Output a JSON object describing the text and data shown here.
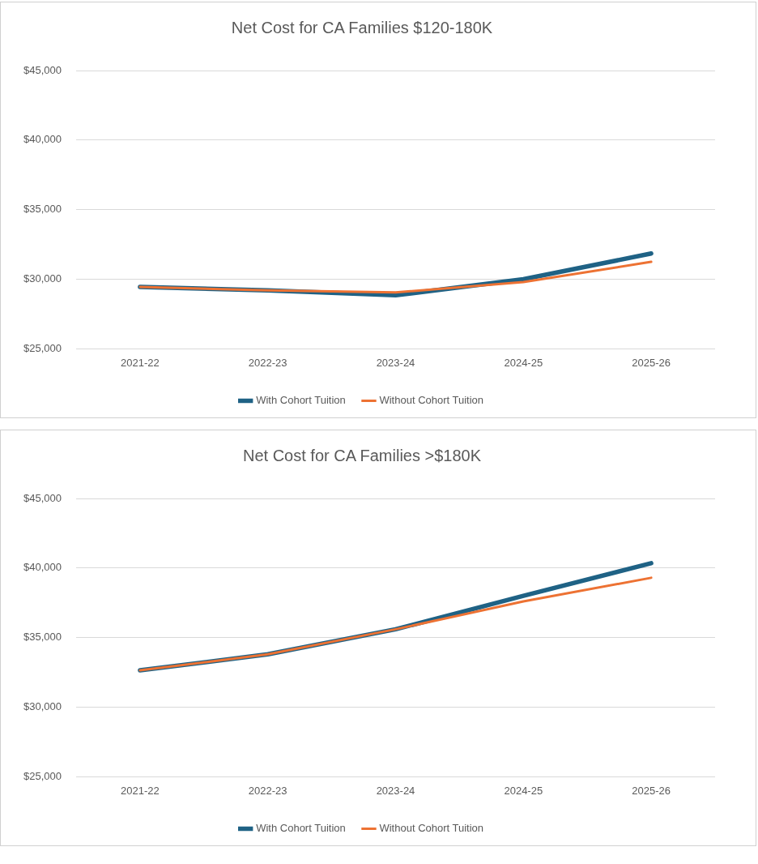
{
  "chart_data": [
    {
      "type": "line",
      "title": "Net Cost for CA Families $120-180K",
      "categories": [
        "2021-22",
        "2022-23",
        "2023-24",
        "2024-25",
        "2025-26"
      ],
      "series": [
        {
          "name": "With Cohort Tuition",
          "color": "#1f6285",
          "values": [
            29450,
            29200,
            28850,
            30000,
            31850
          ]
        },
        {
          "name": "Without Cohort Tuition",
          "color": "#ed7233",
          "values": [
            29450,
            29200,
            29050,
            29800,
            31250
          ]
        }
      ],
      "ylim": [
        25000,
        45000
      ],
      "yticks": [
        {
          "value": 25000,
          "label": "$25,000"
        },
        {
          "value": 30000,
          "label": "$30,000"
        },
        {
          "value": 35000,
          "label": "$35,000"
        },
        {
          "value": 40000,
          "label": "$40,000"
        },
        {
          "value": 45000,
          "label": "$45,000"
        }
      ],
      "grid": "y",
      "legend": "bottom",
      "marker": "none",
      "line_style": "solid"
    },
    {
      "type": "line",
      "title": "Net Cost for CA Families >$180K",
      "categories": [
        "2021-22",
        "2022-23",
        "2023-24",
        "2024-25",
        "2025-26"
      ],
      "series": [
        {
          "name": "With Cohort Tuition",
          "color": "#1f6285",
          "values": [
            32650,
            33800,
            35600,
            38000,
            40350
          ]
        },
        {
          "name": "Without Cohort Tuition",
          "color": "#ed7233",
          "values": [
            32650,
            33800,
            35600,
            37600,
            39300
          ]
        }
      ],
      "ylim": [
        25000,
        45000
      ],
      "yticks": [
        {
          "value": 25000,
          "label": "$25,000"
        },
        {
          "value": 30000,
          "label": "$30,000"
        },
        {
          "value": 35000,
          "label": "$35,000"
        },
        {
          "value": 40000,
          "label": "$40,000"
        },
        {
          "value": 45000,
          "label": "$45,000"
        }
      ],
      "grid": "y",
      "legend": "bottom",
      "marker": "none",
      "line_style": "solid"
    }
  ]
}
